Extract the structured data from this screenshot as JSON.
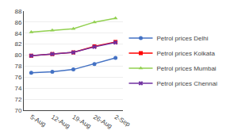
{
  "chart_data": {
    "type": "line",
    "categories": [
      "5-Aug",
      "12-Aug",
      "19-Aug",
      "26-Aug",
      "2-Sep"
    ],
    "series": [
      {
        "name": "Petrol prices Delhi",
        "color": "#4472C4",
        "marker": "circle",
        "values": [
          76.8,
          77.0,
          77.4,
          78.4,
          79.5
        ]
      },
      {
        "name": "Petrol prices Kolkata",
        "color": "#FF0000",
        "marker": "square",
        "values": [
          79.9,
          80.2,
          80.5,
          81.6,
          82.4
        ]
      },
      {
        "name": "Petrol prices Mumbai",
        "color": "#92D050",
        "marker": "triangle",
        "values": [
          84.2,
          84.5,
          84.8,
          86.0,
          86.7
        ]
      },
      {
        "name": "Petrol prices Chennai",
        "color": "#7030A0",
        "marker": "x",
        "values": [
          79.9,
          80.2,
          80.5,
          81.5,
          82.3
        ]
      }
    ],
    "ylim": [
      70,
      88
    ],
    "yticks": [
      70,
      72,
      74,
      76,
      78,
      80,
      82,
      84,
      86,
      88
    ],
    "grid": true,
    "legend": "right"
  }
}
